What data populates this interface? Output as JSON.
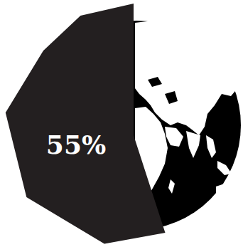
{
  "chart_data": {
    "type": "pie",
    "values": [
      55
    ],
    "value_labels": [
      "55%"
    ],
    "data_labels": true,
    "color": "#231f20"
  }
}
